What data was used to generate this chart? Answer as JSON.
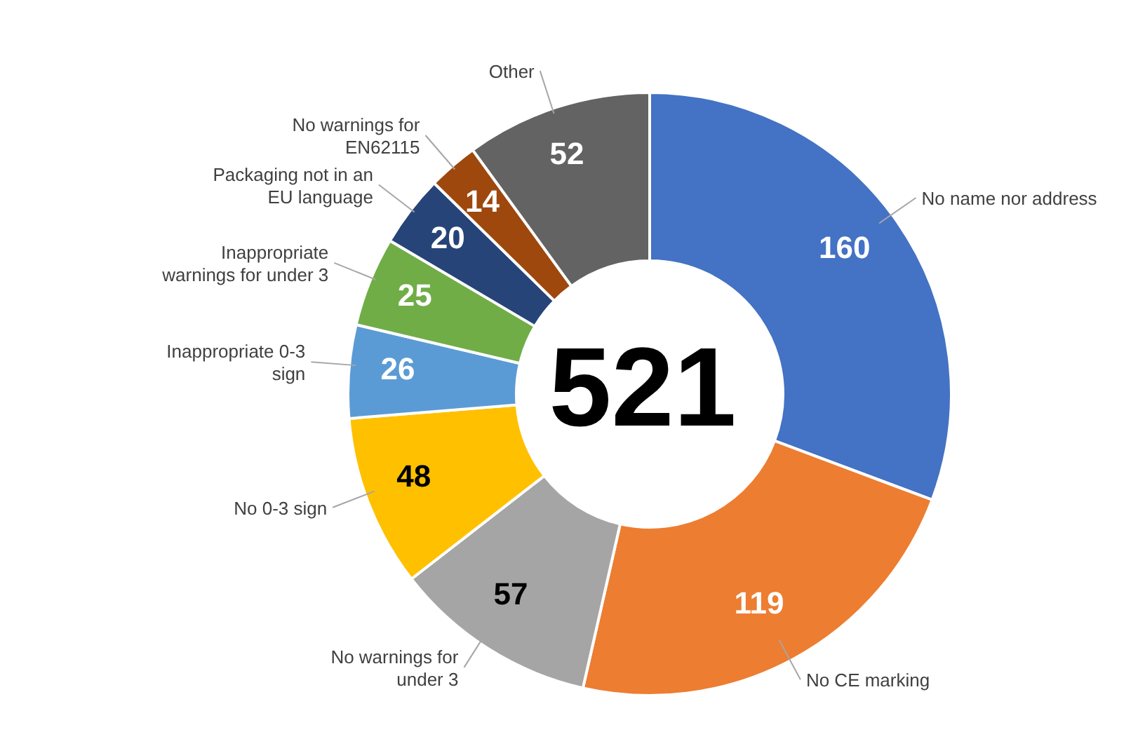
{
  "chart_data": {
    "type": "donut",
    "categories": [
      "No name nor address",
      "No CE marking",
      "No warnings for under 3",
      "No 0-3 sign",
      "Inappropriate 0-3 sign",
      "Inappropriate warnings for under 3",
      "Packaging not in an EU language",
      "No warnings for EN62115",
      "Other"
    ],
    "values": [
      160,
      119,
      57,
      48,
      26,
      25,
      20,
      14,
      52
    ],
    "colors": [
      "#4472c4",
      "#ed7d31",
      "#a5a5a5",
      "#ffc000",
      "#5b9bd5",
      "#70ad47",
      "#264478",
      "#9e480e",
      "#636363"
    ],
    "data_labels": true,
    "annotations": [
      "521"
    ]
  }
}
